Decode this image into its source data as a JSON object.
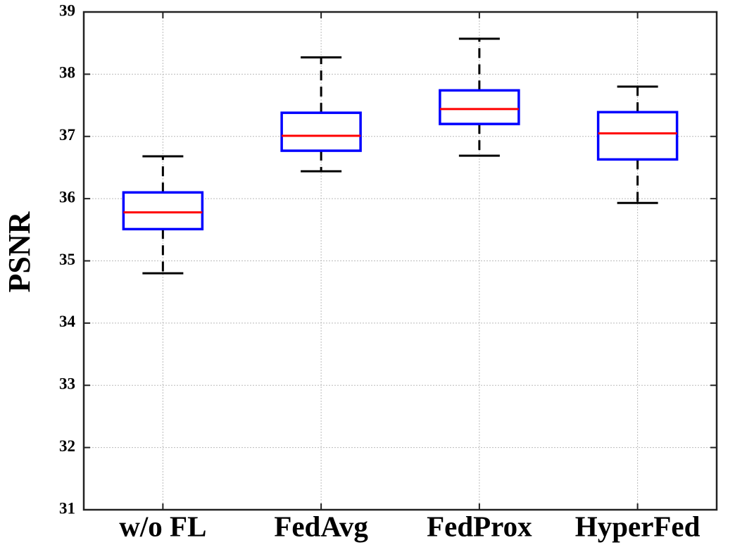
{
  "chart_data": {
    "type": "box",
    "y_label": "PSNR",
    "categories": [
      "w/o FL",
      "FedAvg",
      "FedProx",
      "HyperFed"
    ],
    "whisker_low": [
      34.8,
      36.44,
      36.69,
      35.93
    ],
    "q1": [
      35.51,
      36.77,
      37.2,
      36.63
    ],
    "median": [
      35.78,
      37.01,
      37.44,
      37.05
    ],
    "q3": [
      36.1,
      37.38,
      37.74,
      37.39
    ],
    "whisker_high": [
      36.68,
      38.27,
      38.57,
      37.8
    ],
    "box_color": "#0000ff",
    "median_color": "#ff0000",
    "whisker_color": "#000000",
    "ylim": [
      31,
      39
    ],
    "yticks": [
      31,
      32,
      33,
      34,
      35,
      36,
      37,
      38,
      39
    ],
    "grid": true
  }
}
